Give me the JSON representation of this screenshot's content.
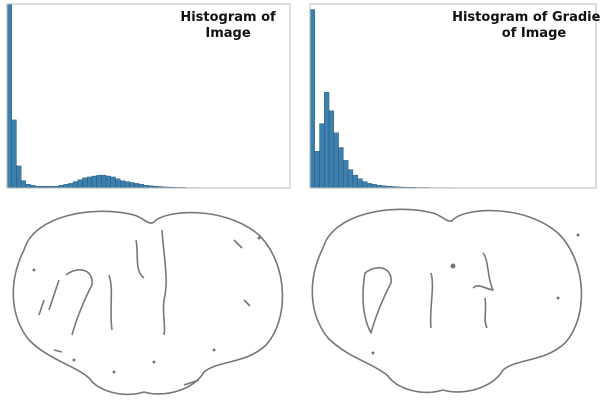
{
  "chart_data": [
    {
      "type": "histogram",
      "title": [
        "Histogram of",
        "Image"
      ],
      "color": "#3d80ad",
      "bins": [
        0,
        1,
        2,
        3,
        4,
        5,
        6,
        7,
        8,
        9,
        10,
        11,
        12,
        13,
        14,
        15,
        16,
        17,
        18,
        19,
        20,
        21,
        22,
        23,
        24,
        25,
        26,
        27,
        28,
        29,
        30,
        31,
        32,
        33,
        34,
        35,
        36,
        37,
        38,
        39,
        40,
        41,
        42,
        43,
        44,
        45,
        46,
        47,
        48,
        49,
        50,
        51,
        52,
        53,
        54,
        55,
        56,
        57,
        58,
        59,
        60
      ],
      "counts": [
        100,
        37,
        12,
        4,
        2,
        1.5,
        1,
        1,
        1,
        1,
        1,
        1.5,
        2,
        2.5,
        3.5,
        4.5,
        5.5,
        6,
        6.5,
        7,
        7,
        6.5,
        6,
        5,
        4,
        3.5,
        3,
        2.5,
        2,
        1.5,
        1.2,
        1,
        0.8,
        0.6,
        0.5,
        0.4,
        0.3,
        0.3,
        0.2,
        0.2,
        0.2,
        0.1,
        0.1,
        0.1,
        0.1,
        0.1,
        0.1,
        0.1,
        0,
        0,
        0,
        0,
        0,
        0,
        0,
        0,
        0,
        0,
        0,
        0
      ],
      "xlim": [
        0,
        60
      ],
      "ylim": [
        0,
        100
      ]
    },
    {
      "type": "histogram",
      "title": [
        "Histogram of Gradient",
        "of Image"
      ],
      "color": "#3d80ad",
      "bins": [
        0,
        1,
        2,
        3,
        4,
        5,
        6,
        7,
        8,
        9,
        10,
        11,
        12,
        13,
        14,
        15,
        16,
        17,
        18,
        19,
        20,
        21,
        22,
        23,
        24,
        25,
        26,
        27,
        28,
        29,
        30,
        31,
        32,
        33,
        34,
        35,
        36,
        37,
        38,
        39,
        40,
        41,
        42,
        43,
        44,
        45,
        46,
        47,
        48,
        49,
        50,
        51,
        52,
        53,
        54,
        55,
        56,
        57,
        58,
        59,
        60
      ],
      "counts": [
        97,
        20,
        35,
        52,
        42,
        30,
        22,
        15,
        10,
        7,
        5,
        3.5,
        2.5,
        2,
        1.5,
        1.2,
        1,
        0.8,
        0.6,
        0.5,
        0.4,
        0.4,
        0.3,
        0.3,
        0.3,
        0.2,
        0.2,
        0.2,
        0.2,
        0.2,
        0.1,
        0.1,
        0.1,
        0.1,
        0.1,
        0.1,
        0.1,
        0.1,
        0.1,
        0.1,
        0.1,
        0.1,
        0.1,
        0.1,
        0.1,
        0,
        0,
        0,
        0,
        0,
        0,
        0,
        0,
        0,
        0,
        0,
        0,
        0,
        0,
        0
      ],
      "xlim": [
        0,
        60
      ],
      "ylim": [
        0,
        100
      ]
    }
  ]
}
